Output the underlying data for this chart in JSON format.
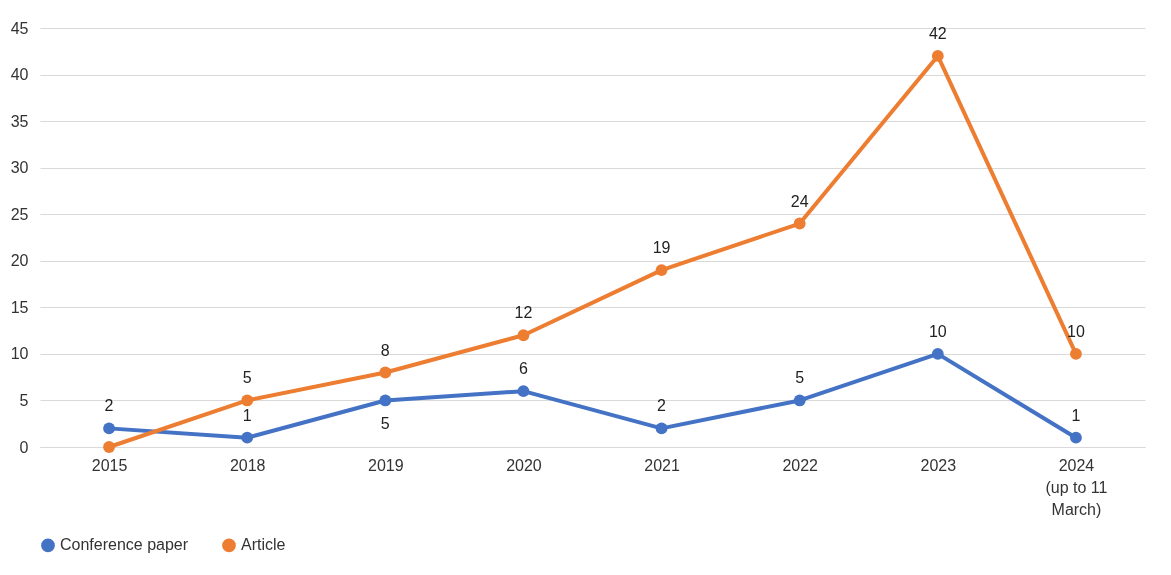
{
  "chart_data": {
    "type": "line",
    "categories": [
      "2015",
      "2018",
      "2019",
      "2020",
      "2021",
      "2022",
      "2023",
      "2024\n(up to 11\nMarch)"
    ],
    "series": [
      {
        "name": "Conference paper",
        "color": "#4472c4",
        "values": [
          2,
          1,
          5,
          6,
          2,
          5,
          10,
          1
        ],
        "value_labels": [
          "2",
          "1",
          "5",
          "6",
          "2",
          "5",
          "10",
          "1"
        ]
      },
      {
        "name": "Article",
        "color": "#ed7d31",
        "values": [
          0,
          5,
          8,
          12,
          19,
          24,
          42,
          10
        ],
        "value_labels": [
          null,
          "5",
          "8",
          "12",
          "19",
          "24",
          "42",
          "10"
        ]
      }
    ],
    "ylim": [
      0,
      45
    ],
    "yticks": [
      0,
      5,
      10,
      15,
      20,
      25,
      30,
      35,
      40,
      45
    ],
    "grid": "y",
    "legend": "bottom",
    "marker": "circle",
    "line_style": "solid"
  }
}
